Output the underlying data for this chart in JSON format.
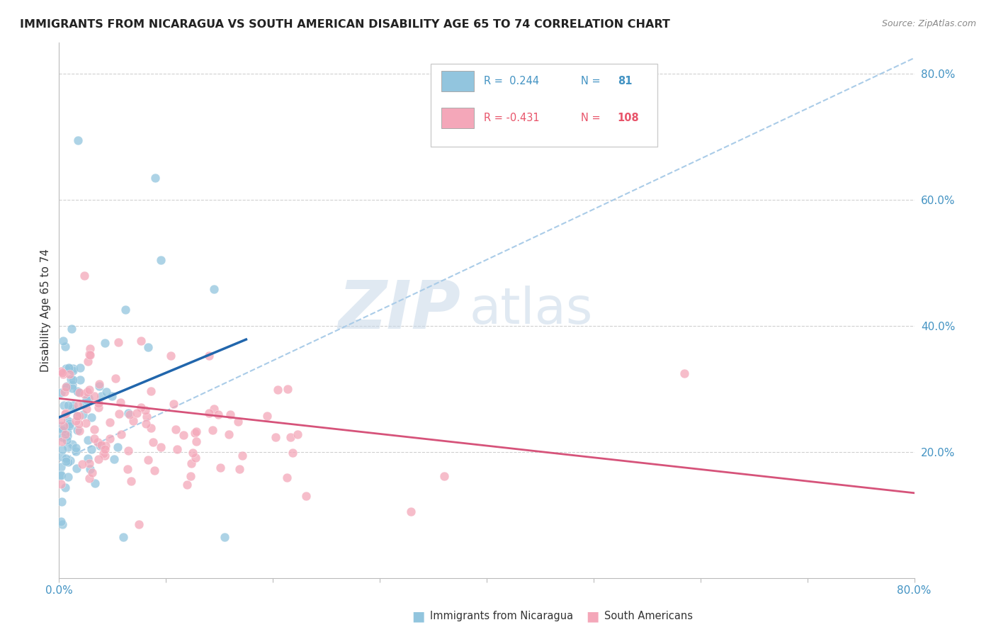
{
  "title": "IMMIGRANTS FROM NICARAGUA VS SOUTH AMERICAN DISABILITY AGE 65 TO 74 CORRELATION CHART",
  "source": "Source: ZipAtlas.com",
  "ylabel": "Disability Age 65 to 74",
  "xlim": [
    0.0,
    0.8
  ],
  "ylim": [
    0.0,
    0.85
  ],
  "x_ticks": [
    0.0,
    0.1,
    0.2,
    0.3,
    0.4,
    0.5,
    0.6,
    0.7,
    0.8
  ],
  "y_ticks_right": [
    0.2,
    0.4,
    0.6,
    0.8
  ],
  "y_tick_labels_right": [
    "20.0%",
    "40.0%",
    "60.0%",
    "80.0%"
  ],
  "watermark_zip": "ZIP",
  "watermark_atlas": "atlas",
  "legend_r1": "R =  0.244",
  "legend_n1": "N =   81",
  "legend_r2": "R = -0.431",
  "legend_n2": "N = 108",
  "blue_scatter_color": "#92C5DE",
  "blue_line_color": "#2166AC",
  "pink_scatter_color": "#F4A7B9",
  "pink_line_color": "#D6537A",
  "dash_line_color": "#AACCE8",
  "background_color": "#FFFFFF",
  "grid_color": "#D0D0D0",
  "tick_color": "#4393C3",
  "watermark_color": "#C8D8E8",
  "title_color": "#222222",
  "source_color": "#888888",
  "nicaragua_seed": 77,
  "south_american_seed": 55
}
